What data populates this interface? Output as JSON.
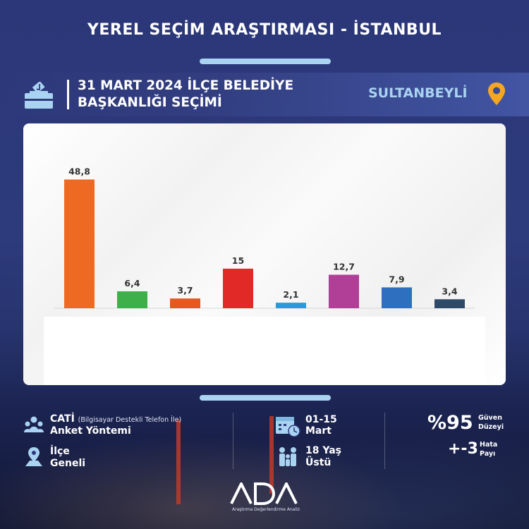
{
  "header": {
    "title": "YEREL SEÇİM ARAŞTIRMASI - İSTANBUL",
    "election_line1": "31 MART 2024 İLÇE BELEDİYE",
    "election_line2": "BAŞKANLIĞI SEÇİMİ",
    "district": "SULTANBEYLİ",
    "icons": [
      "ballot-box-icon",
      "location-pin-icon"
    ]
  },
  "chart_data": {
    "type": "bar",
    "categories": [
      "",
      "",
      "",
      "",
      "",
      "",
      "",
      ""
    ],
    "values": [
      48.8,
      6.4,
      3.7,
      15,
      2.1,
      12.7,
      7.9,
      3.4
    ],
    "value_labels": [
      "48,8",
      "6,4",
      "3,7",
      "15",
      "2,1",
      "12,7",
      "7,9",
      "3,4"
    ],
    "colors": [
      "#ee6a22",
      "#3eb049",
      "#e8571e",
      "#e12a27",
      "#2b9ad8",
      "#b13f98",
      "#2f6fbf",
      "#2f4a66"
    ],
    "title": "",
    "xlabel": "",
    "ylabel": "",
    "ylim": [
      0,
      50
    ],
    "grid": false
  },
  "footer": {
    "method_title": "CATİ",
    "method_note": "(Bilgisayar Destekli Telefon İle)",
    "method_label": "Anket Yöntemi",
    "scope_line1": "İlçe",
    "scope_line2": "Geneli",
    "date_line1": "01-15",
    "date_line2": "Mart",
    "age_line1": "18 Yaş",
    "age_line2": "Üstü",
    "confidence_value": "%95",
    "confidence_label1": "Güven",
    "confidence_label2": "Düzeyi",
    "error_value": "+-3",
    "error_label1": "Hata",
    "error_label2": "Payı",
    "icons": [
      "people-icon",
      "map-pin-icon",
      "calendar-clock-icon",
      "family-icon"
    ]
  },
  "brand": {
    "logo": "ADA",
    "tagline": "Araştırma Değerlendirme Analiz"
  },
  "colors": {
    "background": "#2b3778",
    "accent": "#a9d3f0",
    "pin": "#f5a623"
  }
}
